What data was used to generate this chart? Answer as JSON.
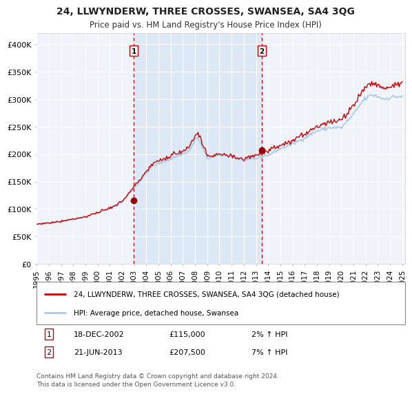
{
  "title": "24, LLWYNDERW, THREE CROSSES, SWANSEA, SA4 3QG",
  "subtitle": "Price paid vs. HM Land Registry's House Price Index (HPI)",
  "hpi_color": "#a8c8e8",
  "price_color": "#cc0000",
  "sale1_date_label": "18-DEC-2002",
  "sale1_price": 115000,
  "sale1_hpi_pct": "2%",
  "sale2_date_label": "21-JUN-2013",
  "sale2_price": 207500,
  "sale2_hpi_pct": "7%",
  "legend_label1": "24, LLWYNDERW, THREE CROSSES, SWANSEA, SA4 3QG (detached house)",
  "legend_label2": "HPI: Average price, detached house, Swansea",
  "footer": "Contains HM Land Registry data © Crown copyright and database right 2024.\nThis data is licensed under the Open Government Licence v3.0.",
  "ylabel_ticks": [
    "£0",
    "£50K",
    "£100K",
    "£150K",
    "£200K",
    "£250K",
    "£300K",
    "£350K",
    "£400K"
  ],
  "ylim": [
    0,
    420000
  ],
  "background_color": "#ffffff",
  "plot_bg_color": "#f0f4fa",
  "shaded_bg_color": "#dce8f5",
  "marker_color": "#990000",
  "dashed_line_color": "#cc0000",
  "grid_color": "#ffffff",
  "spine_color": "#cccccc"
}
